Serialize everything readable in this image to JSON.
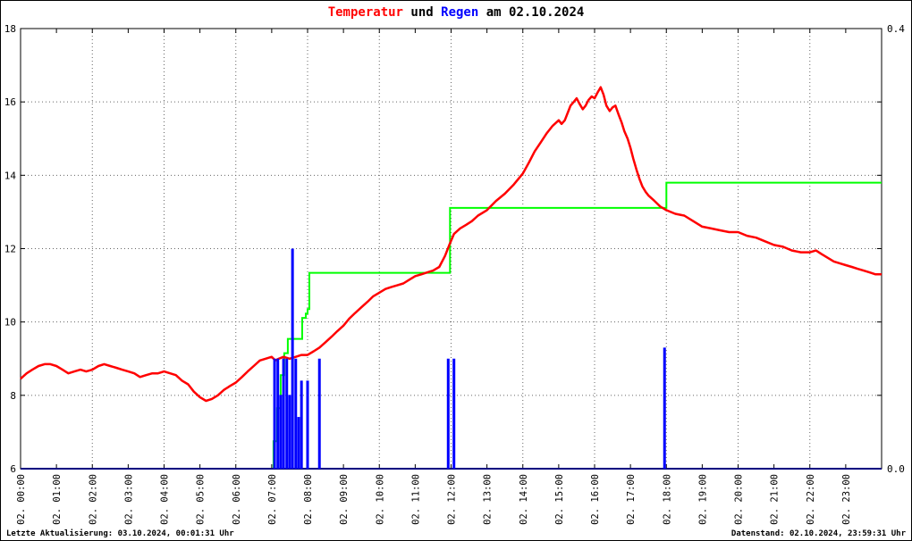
{
  "title": {
    "parts": [
      {
        "text": "Temperatur",
        "color": "#ff0000"
      },
      {
        "text": " und ",
        "color": "#000000"
      },
      {
        "text": "Regen",
        "color": "#0000ff"
      },
      {
        "text": " am 02.10.2024",
        "color": "#000000"
      }
    ]
  },
  "footer": {
    "left": "Letzte Aktualisierung: 03.10.2024, 00:01:31 Uhr",
    "right": "Datenstand: 02.10.2024, 23:59:31 Uhr"
  },
  "chart_data": {
    "type": "line",
    "title": "Temperatur und Regen am 02.10.2024",
    "xlabel": "",
    "ylabel_left": "",
    "ylabel_right": "",
    "x_axis": {
      "range": [
        0,
        24
      ],
      "tick_step": 1,
      "grid_hours": [
        2,
        4,
        6,
        8,
        10,
        12,
        14,
        16,
        18,
        20,
        22
      ],
      "tick_labels": [
        "02. 00:00",
        "02. 01:00",
        "02. 02:00",
        "02. 03:00",
        "02. 04:00",
        "02. 05:00",
        "02. 06:00",
        "02. 07:00",
        "02. 08:00",
        "02. 09:00",
        "02. 10:00",
        "02. 11:00",
        "02. 12:00",
        "02. 13:00",
        "02. 14:00",
        "02. 15:00",
        "02. 16:00",
        "02. 17:00",
        "02. 18:00",
        "02. 19:00",
        "02. 20:00",
        "02. 21:00",
        "02. 22:00",
        "02. 23:00"
      ]
    },
    "y_left": {
      "range": [
        6,
        18
      ],
      "ticks": [
        6,
        8,
        10,
        12,
        14,
        16,
        18
      ],
      "grid": [
        8,
        10,
        12,
        14,
        16
      ]
    },
    "y_right": {
      "range": [
        0.0,
        0.4
      ],
      "ticks": [
        0.0,
        0.4
      ],
      "tick_labels": [
        "0.0",
        "0.4"
      ]
    },
    "series": [
      {
        "name": "Regensumme",
        "type": "steps",
        "axis": "right",
        "color": "#00ff00",
        "width": 2,
        "points": [
          [
            0,
            0
          ],
          [
            6.95,
            0
          ],
          [
            7.05,
            0.025
          ],
          [
            7.15,
            0.055
          ],
          [
            7.25,
            0.085
          ],
          [
            7.35,
            0.105
          ],
          [
            7.45,
            0.118
          ],
          [
            7.8,
            0.118
          ],
          [
            7.85,
            0.137
          ],
          [
            7.95,
            0.141
          ],
          [
            8.0,
            0.145
          ],
          [
            8.05,
            0.178
          ],
          [
            11.9,
            0.178
          ],
          [
            11.97,
            0.237
          ],
          [
            17.93,
            0.237
          ],
          [
            18.0,
            0.26
          ],
          [
            24,
            0.26
          ]
        ]
      },
      {
        "name": "Regen-Nulllinie",
        "type": "line",
        "axis": "right",
        "color": "#000080",
        "width": 2,
        "points": [
          [
            0,
            0
          ],
          [
            24,
            0
          ]
        ]
      },
      {
        "name": "Temperatur",
        "type": "line",
        "axis": "left",
        "color": "#ff0000",
        "width": 2.5,
        "points": [
          [
            0,
            8.45
          ],
          [
            0.17,
            8.6
          ],
          [
            0.33,
            8.7
          ],
          [
            0.5,
            8.8
          ],
          [
            0.67,
            8.85
          ],
          [
            0.83,
            8.85
          ],
          [
            1,
            8.8
          ],
          [
            1.17,
            8.7
          ],
          [
            1.33,
            8.6
          ],
          [
            1.5,
            8.65
          ],
          [
            1.67,
            8.7
          ],
          [
            1.83,
            8.65
          ],
          [
            2,
            8.7
          ],
          [
            2.17,
            8.8
          ],
          [
            2.33,
            8.85
          ],
          [
            2.5,
            8.8
          ],
          [
            2.67,
            8.75
          ],
          [
            2.83,
            8.7
          ],
          [
            3,
            8.65
          ],
          [
            3.17,
            8.6
          ],
          [
            3.33,
            8.5
          ],
          [
            3.5,
            8.55
          ],
          [
            3.67,
            8.6
          ],
          [
            3.83,
            8.6
          ],
          [
            4,
            8.65
          ],
          [
            4.17,
            8.6
          ],
          [
            4.33,
            8.55
          ],
          [
            4.5,
            8.4
          ],
          [
            4.67,
            8.3
          ],
          [
            4.83,
            8.1
          ],
          [
            5,
            7.95
          ],
          [
            5.17,
            7.85
          ],
          [
            5.33,
            7.9
          ],
          [
            5.5,
            8.0
          ],
          [
            5.67,
            8.15
          ],
          [
            5.83,
            8.25
          ],
          [
            6,
            8.35
          ],
          [
            6.17,
            8.5
          ],
          [
            6.33,
            8.65
          ],
          [
            6.5,
            8.8
          ],
          [
            6.67,
            8.95
          ],
          [
            6.83,
            9.0
          ],
          [
            7,
            9.05
          ],
          [
            7.1,
            8.95
          ],
          [
            7.2,
            9.0
          ],
          [
            7.33,
            9.05
          ],
          [
            7.5,
            9.0
          ],
          [
            7.67,
            9.05
          ],
          [
            7.83,
            9.1
          ],
          [
            8,
            9.1
          ],
          [
            8.17,
            9.2
          ],
          [
            8.33,
            9.3
          ],
          [
            8.5,
            9.45
          ],
          [
            8.67,
            9.6
          ],
          [
            8.83,
            9.75
          ],
          [
            9,
            9.9
          ],
          [
            9.17,
            10.1
          ],
          [
            9.33,
            10.25
          ],
          [
            9.5,
            10.4
          ],
          [
            9.67,
            10.55
          ],
          [
            9.83,
            10.7
          ],
          [
            10,
            10.8
          ],
          [
            10.17,
            10.9
          ],
          [
            10.33,
            10.95
          ],
          [
            10.5,
            11.0
          ],
          [
            10.67,
            11.05
          ],
          [
            10.83,
            11.15
          ],
          [
            11,
            11.25
          ],
          [
            11.17,
            11.3
          ],
          [
            11.33,
            11.35
          ],
          [
            11.5,
            11.4
          ],
          [
            11.67,
            11.5
          ],
          [
            11.83,
            11.8
          ],
          [
            11.95,
            12.1
          ],
          [
            12.08,
            12.4
          ],
          [
            12.25,
            12.55
          ],
          [
            12.42,
            12.65
          ],
          [
            12.58,
            12.75
          ],
          [
            12.75,
            12.9
          ],
          [
            13,
            13.05
          ],
          [
            13.25,
            13.3
          ],
          [
            13.5,
            13.5
          ],
          [
            13.75,
            13.75
          ],
          [
            14,
            14.05
          ],
          [
            14.17,
            14.35
          ],
          [
            14.33,
            14.65
          ],
          [
            14.5,
            14.9
          ],
          [
            14.67,
            15.15
          ],
          [
            14.83,
            15.35
          ],
          [
            15,
            15.5
          ],
          [
            15.08,
            15.4
          ],
          [
            15.17,
            15.5
          ],
          [
            15.25,
            15.7
          ],
          [
            15.33,
            15.9
          ],
          [
            15.42,
            16.0
          ],
          [
            15.5,
            16.1
          ],
          [
            15.58,
            15.95
          ],
          [
            15.67,
            15.8
          ],
          [
            15.75,
            15.9
          ],
          [
            15.83,
            16.05
          ],
          [
            15.92,
            16.15
          ],
          [
            16,
            16.1
          ],
          [
            16.08,
            16.25
          ],
          [
            16.17,
            16.4
          ],
          [
            16.25,
            16.2
          ],
          [
            16.33,
            15.9
          ],
          [
            16.42,
            15.75
          ],
          [
            16.5,
            15.85
          ],
          [
            16.58,
            15.9
          ],
          [
            16.67,
            15.65
          ],
          [
            16.75,
            15.45
          ],
          [
            16.83,
            15.2
          ],
          [
            16.92,
            15.0
          ],
          [
            17,
            14.75
          ],
          [
            17.08,
            14.45
          ],
          [
            17.17,
            14.15
          ],
          [
            17.25,
            13.9
          ],
          [
            17.33,
            13.7
          ],
          [
            17.42,
            13.55
          ],
          [
            17.5,
            13.45
          ],
          [
            17.67,
            13.3
          ],
          [
            17.83,
            13.15
          ],
          [
            18,
            13.05
          ],
          [
            18.25,
            12.95
          ],
          [
            18.5,
            12.9
          ],
          [
            18.75,
            12.75
          ],
          [
            19,
            12.6
          ],
          [
            19.25,
            12.55
          ],
          [
            19.5,
            12.5
          ],
          [
            19.75,
            12.45
          ],
          [
            20,
            12.45
          ],
          [
            20.25,
            12.35
          ],
          [
            20.5,
            12.3
          ],
          [
            20.75,
            12.2
          ],
          [
            21,
            12.1
          ],
          [
            21.25,
            12.05
          ],
          [
            21.5,
            11.95
          ],
          [
            21.75,
            11.9
          ],
          [
            22,
            11.9
          ],
          [
            22.17,
            11.95
          ],
          [
            22.33,
            11.85
          ],
          [
            22.5,
            11.75
          ],
          [
            22.67,
            11.65
          ],
          [
            22.83,
            11.6
          ],
          [
            23,
            11.55
          ],
          [
            23.17,
            11.5
          ],
          [
            23.33,
            11.45
          ],
          [
            23.5,
            11.4
          ],
          [
            23.67,
            11.35
          ],
          [
            23.83,
            11.3
          ],
          [
            24,
            11.3
          ]
        ]
      },
      {
        "name": "Regen",
        "type": "impulses",
        "axis": "right",
        "color": "#0000ff",
        "width": 3,
        "points": [
          [
            7.08,
            0.1
          ],
          [
            7.17,
            0.1
          ],
          [
            7.25,
            0.067
          ],
          [
            7.33,
            0.1
          ],
          [
            7.42,
            0.1
          ],
          [
            7.5,
            0.067
          ],
          [
            7.58,
            0.2
          ],
          [
            7.67,
            0.1
          ],
          [
            7.75,
            0.047
          ],
          [
            7.83,
            0.08
          ],
          [
            8.0,
            0.08
          ],
          [
            8.33,
            0.1
          ],
          [
            11.92,
            0.1
          ],
          [
            12.08,
            0.1
          ],
          [
            17.95,
            0.11
          ]
        ]
      }
    ]
  }
}
